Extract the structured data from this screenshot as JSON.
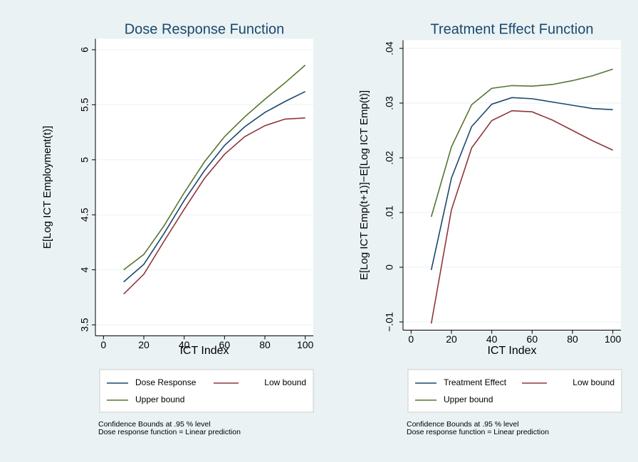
{
  "chart_data": [
    {
      "type": "line",
      "title": "Dose Response Function",
      "x_label": "ICT Index",
      "y_label": "E[Log ICT Employment(t)]",
      "x": [
        10,
        20,
        30,
        40,
        50,
        60,
        70,
        80,
        90,
        100
      ],
      "series": [
        {
          "name": "Dose Response",
          "color": "#1a476f",
          "values": [
            3.89,
            4.05,
            4.33,
            4.63,
            4.9,
            5.13,
            5.3,
            5.43,
            5.53,
            5.62
          ]
        },
        {
          "name": "Low bound",
          "color": "#90353b",
          "values": [
            3.78,
            3.96,
            4.26,
            4.55,
            4.83,
            5.05,
            5.21,
            5.31,
            5.37,
            5.38
          ]
        },
        {
          "name": "Upper bound",
          "color": "#55752f",
          "values": [
            4.0,
            4.14,
            4.4,
            4.7,
            4.98,
            5.21,
            5.39,
            5.55,
            5.7,
            5.86
          ]
        }
      ],
      "xlim": [
        -4,
        104
      ],
      "xticks": [
        0,
        20,
        40,
        60,
        80,
        100
      ],
      "ylim": [
        3.4,
        6.1
      ],
      "yticks": [
        3.5,
        4,
        4.5,
        5,
        5.5,
        6
      ],
      "grid": true,
      "notes": [
        "Confidence Bounds at .95 % level",
        "Dose response function = Linear prediction"
      ]
    },
    {
      "type": "line",
      "title": "Treatment Effect Function",
      "x_label": "ICT Index",
      "y_label": "E[Log ICT Emp(t+1)]−E[Log ICT Emp(t)]",
      "x": [
        10,
        20,
        30,
        40,
        50,
        60,
        70,
        80,
        90,
        100
      ],
      "series": [
        {
          "name": "Treatment Effect",
          "color": "#1a476f",
          "values": [
            -0.0005,
            0.0163,
            0.0257,
            0.0298,
            0.031,
            0.0308,
            0.0302,
            0.0296,
            0.029,
            0.0288
          ]
        },
        {
          "name": "Low bound",
          "color": "#90353b",
          "values": [
            -0.0103,
            0.0105,
            0.0218,
            0.0268,
            0.0286,
            0.0284,
            0.0269,
            0.025,
            0.0231,
            0.0214
          ]
        },
        {
          "name": "Upper bound",
          "color": "#55752f",
          "values": [
            0.0092,
            0.022,
            0.0297,
            0.0327,
            0.0332,
            0.0331,
            0.0334,
            0.0341,
            0.035,
            0.0362
          ]
        }
      ],
      "xlim": [
        -4,
        104
      ],
      "xticks": [
        0,
        20,
        40,
        60,
        80,
        100
      ],
      "ylim": [
        -0.0115,
        0.0415
      ],
      "yticks": [
        {
          "value": -0.01,
          "label": "−.01"
        },
        0,
        {
          "value": 0.01,
          "label": ".01"
        },
        {
          "value": 0.02,
          "label": ".02"
        },
        {
          "value": 0.03,
          "label": ".03"
        },
        {
          "value": 0.04,
          "label": ".04"
        }
      ],
      "grid": true,
      "notes": [
        "Confidence Bounds at .95 % level",
        "Dose response function = Linear prediction"
      ]
    }
  ]
}
